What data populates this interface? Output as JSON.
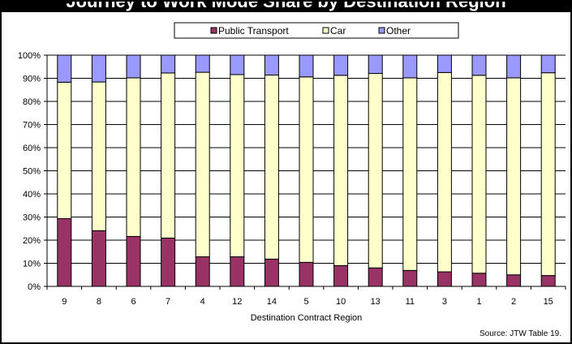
{
  "header": {
    "title": "Journey to Work Mode Share by Destination Region"
  },
  "source_note": "Source: JTW Table 19.",
  "colors": {
    "public_transport": "#993366",
    "car": "#FFFFCC",
    "other": "#9999FF",
    "title_bar": "#000000"
  },
  "chart_data": {
    "type": "bar",
    "stacked": true,
    "percent_stacked": true,
    "title": "",
    "xlabel": "Destination Contract Region",
    "ylabel": "",
    "ylim": [
      0,
      100
    ],
    "y_ticks": [
      "0%",
      "10%",
      "20%",
      "30%",
      "40%",
      "50%",
      "60%",
      "70%",
      "80%",
      "90%",
      "100%"
    ],
    "grid": true,
    "legend_position": "top",
    "categories": [
      "9",
      "8",
      "6",
      "7",
      "4",
      "12",
      "14",
      "5",
      "10",
      "13",
      "11",
      "3",
      "1",
      "2",
      "15"
    ],
    "series": [
      {
        "name": "Public Transport",
        "color": "#993366",
        "values": [
          29.3,
          24.1,
          21.6,
          20.9,
          12.8,
          12.8,
          11.8,
          10.4,
          9.0,
          8.0,
          6.9,
          6.3,
          5.7,
          5.0,
          4.7
        ]
      },
      {
        "name": "Car",
        "color": "#FFFFCC",
        "values": [
          59.0,
          64.3,
          68.6,
          71.4,
          79.8,
          78.8,
          79.6,
          80.2,
          82.3,
          84.1,
          83.3,
          86.2,
          85.6,
          85.2,
          87.7
        ]
      },
      {
        "name": "Other",
        "color": "#9999FF",
        "values": [
          11.7,
          11.6,
          9.8,
          7.7,
          7.4,
          8.4,
          8.6,
          9.4,
          8.7,
          7.9,
          9.8,
          7.5,
          8.7,
          9.8,
          7.6
        ]
      }
    ]
  }
}
